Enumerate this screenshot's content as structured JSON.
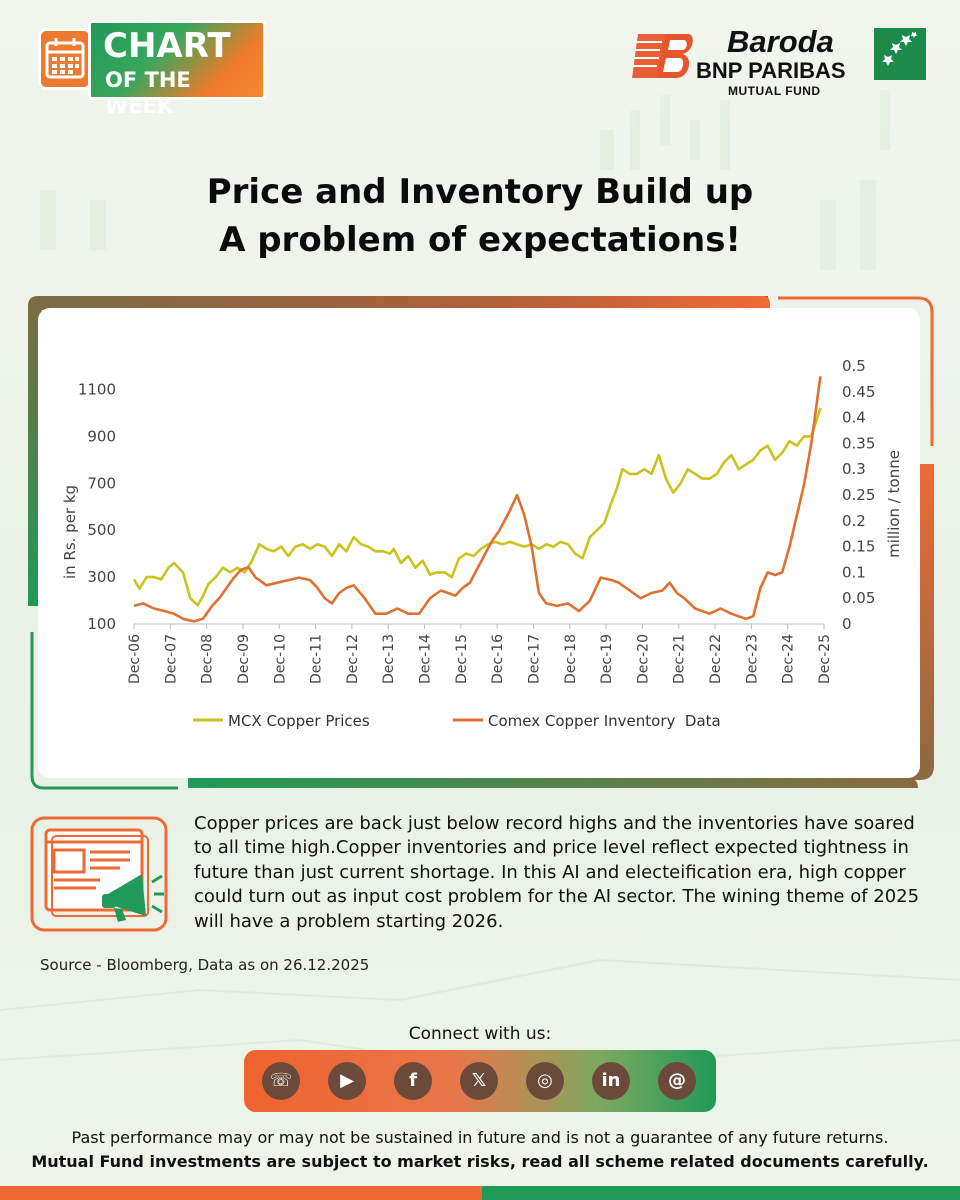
{
  "badge": {
    "line1": "CHART",
    "line2": "OF THE WEEK",
    "icon": "calendar-icon"
  },
  "logo": {
    "line1": "Baroda",
    "line2": "BNP PARIBAS",
    "line3": "MUTUAL FUND"
  },
  "title": {
    "line1": "Price and Inventory Build up",
    "line2": "A problem of expectations!"
  },
  "colors": {
    "orange": "#EE7330",
    "green": "#1F9A58",
    "mcx": "#C9C41E",
    "comex": "#E07030"
  },
  "chart_data": {
    "type": "line",
    "title": "",
    "xlabel": "",
    "ylabel": "in Rs. per kg",
    "y2label": "million / tonne",
    "ylim": [
      100,
      1200
    ],
    "y2lim": [
      0,
      0.5
    ],
    "yticks": [
      "100",
      "300",
      "500",
      "700",
      "900",
      "1100"
    ],
    "y2ticks": [
      "0",
      "0.05",
      "0.1",
      "0.15",
      "0.2",
      "0.25",
      "0.3",
      "0.35",
      "0.4",
      "0.45",
      "0.5"
    ],
    "categories": [
      "Dec-06",
      "Dec-07",
      "Dec-08",
      "Dec-09",
      "Dec-10",
      "Dec-11",
      "Dec-12",
      "Dec-13",
      "Dec-14",
      "Dec-15",
      "Dec-16",
      "Dec-17",
      "Dec-18",
      "Dec-19",
      "Dec-20",
      "Dec-21",
      "Dec-22",
      "Dec-23",
      "Dec-24",
      "Dec-25"
    ],
    "legend_position": "bottom",
    "series": [
      {
        "name": "MCX Copper Prices",
        "axis": "left",
        "x": [
          2006.95,
          2007.1,
          2007.3,
          2007.5,
          2007.7,
          2007.9,
          2008.05,
          2008.3,
          2008.5,
          2008.7,
          2008.85,
          2009.0,
          2009.2,
          2009.4,
          2009.6,
          2009.8,
          2010.0,
          2010.2,
          2010.4,
          2010.6,
          2010.8,
          2011.0,
          2011.2,
          2011.4,
          2011.6,
          2011.8,
          2012.0,
          2012.2,
          2012.4,
          2012.6,
          2012.8,
          2013.0,
          2013.2,
          2013.4,
          2013.6,
          2013.8,
          2014.0,
          2014.1,
          2014.3,
          2014.5,
          2014.7,
          2014.9,
          2015.1,
          2015.3,
          2015.5,
          2015.7,
          2015.9,
          2016.1,
          2016.3,
          2016.5,
          2016.7,
          2016.9,
          2017.1,
          2017.3,
          2017.5,
          2017.7,
          2017.9,
          2018.1,
          2018.3,
          2018.5,
          2018.7,
          2018.9,
          2019.1,
          2019.3,
          2019.5,
          2019.7,
          2019.9,
          2020.1,
          2020.25,
          2020.4,
          2020.6,
          2020.8,
          2021.0,
          2021.2,
          2021.4,
          2021.6,
          2021.8,
          2022.0,
          2022.2,
          2022.4,
          2022.6,
          2022.8,
          2023.0,
          2023.2,
          2023.4,
          2023.6,
          2023.8,
          2024.0,
          2024.2,
          2024.4,
          2024.6,
          2024.8,
          2025.0,
          2025.2,
          2025.4,
          2025.6,
          2025.85
        ],
        "values": [
          290,
          250,
          300,
          300,
          290,
          340,
          360,
          320,
          210,
          180,
          220,
          270,
          300,
          340,
          320,
          340,
          320,
          370,
          440,
          420,
          410,
          430,
          390,
          430,
          440,
          420,
          440,
          430,
          390,
          440,
          410,
          470,
          440,
          430,
          410,
          410,
          400,
          420,
          360,
          390,
          340,
          370,
          310,
          320,
          320,
          300,
          380,
          400,
          390,
          420,
          440,
          450,
          440,
          450,
          440,
          430,
          440,
          420,
          440,
          430,
          450,
          440,
          400,
          380,
          470,
          500,
          530,
          620,
          680,
          760,
          740,
          740,
          760,
          740,
          820,
          720,
          660,
          700,
          760,
          740,
          720,
          720,
          740,
          790,
          820,
          760,
          780,
          800,
          840,
          860,
          800,
          830,
          880,
          860,
          900,
          900,
          1020
        ]
      },
      {
        "name": "Comex Copper Inventory  Data",
        "axis": "right",
        "x": [
          2006.95,
          2007.2,
          2007.5,
          2007.8,
          2008.05,
          2008.3,
          2008.6,
          2008.85,
          2009.1,
          2009.3,
          2009.5,
          2009.7,
          2009.9,
          2010.1,
          2010.3,
          2010.6,
          2010.9,
          2011.2,
          2011.5,
          2011.8,
          2012.0,
          2012.2,
          2012.4,
          2012.6,
          2012.8,
          2013.0,
          2013.3,
          2013.6,
          2013.9,
          2014.2,
          2014.5,
          2014.8,
          2015.1,
          2015.4,
          2015.6,
          2015.8,
          2016.0,
          2016.2,
          2016.5,
          2016.8,
          2017.0,
          2017.3,
          2017.5,
          2017.7,
          2017.9,
          2018.1,
          2018.3,
          2018.6,
          2018.9,
          2019.2,
          2019.5,
          2019.8,
          2020.1,
          2020.3,
          2020.6,
          2020.9,
          2021.2,
          2021.5,
          2021.7,
          2021.9,
          2022.1,
          2022.4,
          2022.6,
          2022.8,
          2023.1,
          2023.4,
          2023.6,
          2023.8,
          2024.0,
          2024.2,
          2024.4,
          2024.6,
          2024.8,
          2025.0,
          2025.2,
          2025.4,
          2025.6,
          2025.85
        ],
        "values": [
          0.035,
          0.04,
          0.03,
          0.025,
          0.02,
          0.01,
          0.005,
          0.01,
          0.035,
          0.05,
          0.07,
          0.09,
          0.105,
          0.11,
          0.09,
          0.075,
          0.08,
          0.085,
          0.09,
          0.085,
          0.07,
          0.05,
          0.04,
          0.06,
          0.07,
          0.075,
          0.05,
          0.02,
          0.02,
          0.03,
          0.02,
          0.02,
          0.05,
          0.065,
          0.06,
          0.055,
          0.07,
          0.08,
          0.12,
          0.16,
          0.18,
          0.22,
          0.25,
          0.21,
          0.15,
          0.06,
          0.04,
          0.035,
          0.04,
          0.025,
          0.045,
          0.09,
          0.085,
          0.08,
          0.065,
          0.05,
          0.06,
          0.065,
          0.08,
          0.06,
          0.05,
          0.03,
          0.025,
          0.02,
          0.03,
          0.02,
          0.015,
          0.01,
          0.015,
          0.07,
          0.1,
          0.095,
          0.1,
          0.15,
          0.21,
          0.27,
          0.35,
          0.48
        ]
      }
    ]
  },
  "commentary": {
    "icon": "announcement-megaphone-icon",
    "text": "Copper prices are back just below record highs and the inventories have soared to all time high.Copper inventories and price level reflect expected tightness in future than just current shortage. In this AI and electeification era, high copper could turn out as input cost problem for the AI sector. The wining theme of 2025 will have a problem starting 2026.",
    "source": "Source - Bloomberg, Data as on 26.12.2025"
  },
  "footer": {
    "connect_label": "Connect with us:",
    "social": [
      {
        "name": "phone-icon",
        "glyph": "☏"
      },
      {
        "name": "youtube-icon",
        "glyph": "▶"
      },
      {
        "name": "facebook-icon",
        "glyph": "f"
      },
      {
        "name": "x-icon",
        "glyph": "𝕏"
      },
      {
        "name": "instagram-icon",
        "glyph": "◎"
      },
      {
        "name": "linkedin-icon",
        "glyph": "in"
      },
      {
        "name": "threads-icon",
        "glyph": "@"
      }
    ],
    "disclaimer1": "Past performance may or may not be sustained in future and is not a guarantee of any future returns.",
    "disclaimer2": "Mutual Fund investments are subject to market risks, read all scheme related documents carefully."
  }
}
